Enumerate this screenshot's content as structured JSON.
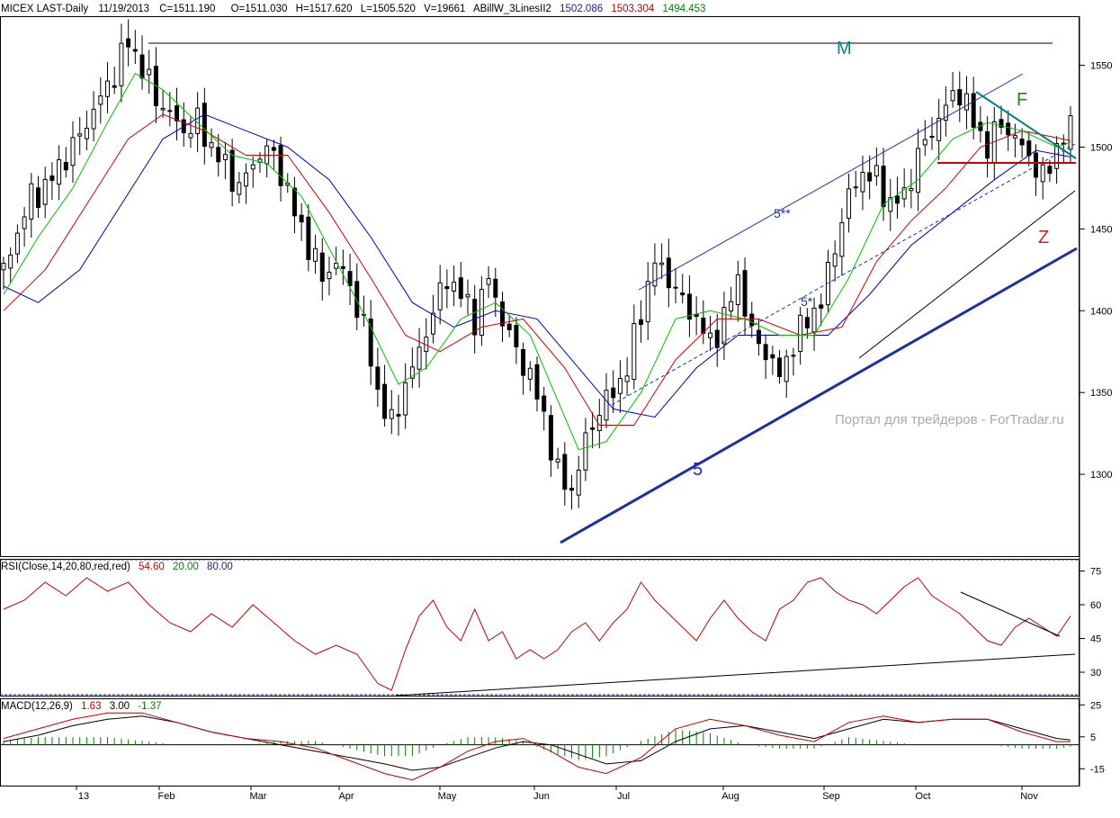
{
  "header": {
    "symbol": "MICEX LAST-Daily",
    "date": "11/19/2013",
    "close": "C=1511.190",
    "open": "O=1511.030",
    "high": "H=1517.620",
    "low": "L=1505.520",
    "volume": "V=19661",
    "indicator": "ABillW_3LinesII2",
    "ma1": "1502.086",
    "ma2": "1503.304",
    "ma3": "1494.453"
  },
  "annotations": {
    "m": "M",
    "f": "F",
    "z": "Z",
    "wave5": "5",
    "wave5star": "5*",
    "wave5starstar": "5**",
    "watermark": "Портал для трейдеров - ForTradar.ru"
  },
  "rsi_header": {
    "label": "RSI(Close,14,20,80,red,red)",
    "value": "54.60",
    "lower": "20.00",
    "upper": "80.00"
  },
  "macd_header": {
    "label": "MACD(12,26,9)",
    "macd": "1.63",
    "signal": "3.00",
    "hist": "-1.37"
  },
  "colors": {
    "header_blue": "#1a1a8c",
    "header_red": "#c00000",
    "header_green": "#008000",
    "candle": "#000000",
    "ma_fast": "#00c000",
    "ma_mid": "#d00000",
    "ma_slow": "#0000c0",
    "trend_blue": "#1c2fa8",
    "annot_teal": "#008080",
    "annot_green": "#208020",
    "annot_red": "#d02020",
    "level_red": "#cc0000",
    "watermark": "#a9a9a9"
  },
  "chart_data": [
    {
      "type": "candlestick",
      "title": "MICEX LAST-Daily",
      "ylim": [
        1250,
        1580
      ],
      "yticks": [
        1300,
        1350,
        1400,
        1450,
        1500,
        1550
      ],
      "months": [
        "13",
        "Feb",
        "Mar",
        "Apr",
        "May",
        "Jun",
        "Jul",
        "Aug",
        "Sep",
        "Oct",
        "Nov"
      ],
      "close_path": [
        [
          0,
          1425
        ],
        [
          4,
          1448
        ],
        [
          8,
          1470
        ],
        [
          12,
          1475
        ],
        [
          16,
          1488
        ],
        [
          20,
          1500
        ],
        [
          24,
          1515
        ],
        [
          28,
          1530
        ],
        [
          32,
          1545
        ],
        [
          36,
          1565
        ],
        [
          40,
          1548
        ],
        [
          44,
          1530
        ],
        [
          48,
          1520
        ],
        [
          52,
          1510
        ],
        [
          56,
          1515
        ],
        [
          60,
          1500
        ],
        [
          64,
          1488
        ],
        [
          68,
          1475
        ],
        [
          72,
          1490
        ],
        [
          76,
          1500
        ],
        [
          80,
          1485
        ],
        [
          84,
          1460
        ],
        [
          88,
          1440
        ],
        [
          92,
          1420
        ],
        [
          96,
          1430
        ],
        [
          100,
          1415
        ],
        [
          104,
          1390
        ],
        [
          108,
          1350
        ],
        [
          112,
          1330
        ],
        [
          116,
          1355
        ],
        [
          120,
          1375
        ],
        [
          124,
          1400
        ],
        [
          128,
          1420
        ],
        [
          132,
          1410
        ],
        [
          136,
          1395
        ],
        [
          140,
          1420
        ],
        [
          144,
          1395
        ],
        [
          148,
          1375
        ],
        [
          152,
          1360
        ],
        [
          156,
          1335
        ],
        [
          160,
          1300
        ],
        [
          164,
          1290
        ],
        [
          168,
          1320
        ],
        [
          172,
          1340
        ],
        [
          176,
          1350
        ],
        [
          180,
          1365
        ],
        [
          184,
          1400
        ],
        [
          188,
          1430
        ],
        [
          192,
          1420
        ],
        [
          196,
          1405
        ],
        [
          200,
          1395
        ],
        [
          204,
          1380
        ],
        [
          208,
          1395
        ],
        [
          212,
          1420
        ],
        [
          216,
          1385
        ],
        [
          220,
          1375
        ],
        [
          224,
          1360
        ],
        [
          228,
          1380
        ],
        [
          232,
          1395
        ],
        [
          236,
          1405
        ],
        [
          240,
          1440
        ],
        [
          244,
          1470
        ],
        [
          248,
          1485
        ],
        [
          252,
          1480
        ],
        [
          256,
          1465
        ],
        [
          260,
          1470
        ],
        [
          264,
          1495
        ],
        [
          268,
          1510
        ],
        [
          272,
          1525
        ],
        [
          276,
          1535
        ],
        [
          280,
          1515
        ],
        [
          284,
          1500
        ],
        [
          288,
          1515
        ],
        [
          292,
          1505
        ],
        [
          296,
          1495
        ],
        [
          300,
          1480
        ],
        [
          304,
          1500
        ],
        [
          308,
          1511
        ]
      ],
      "ma_fast_path": [
        [
          0,
          1410
        ],
        [
          10,
          1445
        ],
        [
          20,
          1475
        ],
        [
          30,
          1515
        ],
        [
          38,
          1545
        ],
        [
          46,
          1535
        ],
        [
          56,
          1515
        ],
        [
          66,
          1495
        ],
        [
          76,
          1490
        ],
        [
          86,
          1470
        ],
        [
          96,
          1430
        ],
        [
          106,
          1390
        ],
        [
          114,
          1355
        ],
        [
          122,
          1365
        ],
        [
          132,
          1395
        ],
        [
          142,
          1405
        ],
        [
          152,
          1385
        ],
        [
          160,
          1345
        ],
        [
          166,
          1315
        ],
        [
          174,
          1320
        ],
        [
          184,
          1350
        ],
        [
          194,
          1395
        ],
        [
          204,
          1400
        ],
        [
          214,
          1395
        ],
        [
          224,
          1385
        ],
        [
          234,
          1385
        ],
        [
          244,
          1420
        ],
        [
          254,
          1465
        ],
        [
          264,
          1480
        ],
        [
          274,
          1505
        ],
        [
          284,
          1515
        ],
        [
          294,
          1510
        ],
        [
          304,
          1500
        ],
        [
          308,
          1503
        ]
      ],
      "ma_mid_path": [
        [
          0,
          1400
        ],
        [
          12,
          1425
        ],
        [
          24,
          1465
        ],
        [
          36,
          1505
        ],
        [
          46,
          1520
        ],
        [
          58,
          1510
        ],
        [
          70,
          1495
        ],
        [
          82,
          1495
        ],
        [
          94,
          1460
        ],
        [
          106,
          1420
        ],
        [
          116,
          1385
        ],
        [
          126,
          1375
        ],
        [
          138,
          1390
        ],
        [
          150,
          1395
        ],
        [
          162,
          1365
        ],
        [
          172,
          1330
        ],
        [
          182,
          1330
        ],
        [
          194,
          1370
        ],
        [
          206,
          1395
        ],
        [
          218,
          1395
        ],
        [
          230,
          1385
        ],
        [
          242,
          1390
        ],
        [
          252,
          1430
        ],
        [
          262,
          1455
        ],
        [
          272,
          1475
        ],
        [
          282,
          1500
        ],
        [
          294,
          1510
        ],
        [
          308,
          1504
        ]
      ],
      "ma_slow_path": [
        [
          0,
          1415
        ],
        [
          10,
          1405
        ],
        [
          22,
          1425
        ],
        [
          34,
          1465
        ],
        [
          46,
          1505
        ],
        [
          58,
          1520
        ],
        [
          70,
          1510
        ],
        [
          82,
          1500
        ],
        [
          94,
          1480
        ],
        [
          106,
          1445
        ],
        [
          118,
          1405
        ],
        [
          130,
          1390
        ],
        [
          142,
          1400
        ],
        [
          154,
          1395
        ],
        [
          166,
          1365
        ],
        [
          176,
          1340
        ],
        [
          188,
          1335
        ],
        [
          200,
          1365
        ],
        [
          212,
          1385
        ],
        [
          226,
          1385
        ],
        [
          238,
          1385
        ],
        [
          250,
          1410
        ],
        [
          262,
          1440
        ],
        [
          274,
          1460
        ],
        [
          286,
          1480
        ],
        [
          298,
          1498
        ],
        [
          308,
          1494
        ]
      ]
    },
    {
      "type": "line",
      "title": "RSI(Close,14,20,80,red,red)",
      "ylim": [
        20,
        80
      ],
      "yticks": [
        30,
        45,
        60,
        75
      ],
      "values_path": [
        [
          0,
          58
        ],
        [
          6,
          62
        ],
        [
          12,
          70
        ],
        [
          18,
          64
        ],
        [
          24,
          72
        ],
        [
          30,
          66
        ],
        [
          36,
          70
        ],
        [
          42,
          60
        ],
        [
          48,
          52
        ],
        [
          54,
          48
        ],
        [
          60,
          56
        ],
        [
          66,
          50
        ],
        [
          72,
          60
        ],
        [
          78,
          52
        ],
        [
          84,
          44
        ],
        [
          90,
          38
        ],
        [
          96,
          42
        ],
        [
          102,
          38
        ],
        [
          108,
          25
        ],
        [
          112,
          22
        ],
        [
          116,
          40
        ],
        [
          120,
          55
        ],
        [
          124,
          62
        ],
        [
          128,
          50
        ],
        [
          132,
          44
        ],
        [
          136,
          58
        ],
        [
          140,
          44
        ],
        [
          144,
          48
        ],
        [
          148,
          36
        ],
        [
          152,
          40
        ],
        [
          156,
          36
        ],
        [
          160,
          40
        ],
        [
          164,
          48
        ],
        [
          168,
          52
        ],
        [
          172,
          44
        ],
        [
          176,
          52
        ],
        [
          180,
          58
        ],
        [
          184,
          70
        ],
        [
          188,
          62
        ],
        [
          192,
          56
        ],
        [
          196,
          50
        ],
        [
          200,
          44
        ],
        [
          204,
          54
        ],
        [
          208,
          62
        ],
        [
          212,
          54
        ],
        [
          216,
          48
        ],
        [
          220,
          44
        ],
        [
          224,
          58
        ],
        [
          228,
          62
        ],
        [
          232,
          70
        ],
        [
          236,
          72
        ],
        [
          240,
          66
        ],
        [
          244,
          62
        ],
        [
          248,
          60
        ],
        [
          252,
          56
        ],
        [
          256,
          62
        ],
        [
          260,
          68
        ],
        [
          264,
          72
        ],
        [
          268,
          64
        ],
        [
          272,
          60
        ],
        [
          276,
          56
        ],
        [
          280,
          50
        ],
        [
          284,
          44
        ],
        [
          288,
          42
        ],
        [
          292,
          50
        ],
        [
          296,
          54
        ],
        [
          300,
          50
        ],
        [
          304,
          46
        ],
        [
          308,
          55
        ]
      ]
    },
    {
      "type": "line",
      "title": "MACD(12,26,9)",
      "ylim": [
        -25,
        28
      ],
      "yticks": [
        -15,
        5,
        25
      ],
      "macd_path": [
        [
          0,
          4
        ],
        [
          10,
          10
        ],
        [
          20,
          16
        ],
        [
          30,
          20
        ],
        [
          40,
          20
        ],
        [
          50,
          14
        ],
        [
          60,
          8
        ],
        [
          70,
          4
        ],
        [
          80,
          2
        ],
        [
          90,
          -2
        ],
        [
          100,
          -10
        ],
        [
          110,
          -18
        ],
        [
          118,
          -22
        ],
        [
          126,
          -14
        ],
        [
          134,
          -4
        ],
        [
          142,
          2
        ],
        [
          150,
          4
        ],
        [
          158,
          -4
        ],
        [
          166,
          -14
        ],
        [
          174,
          -18
        ],
        [
          184,
          -8
        ],
        [
          194,
          10
        ],
        [
          204,
          16
        ],
        [
          214,
          12
        ],
        [
          224,
          6
        ],
        [
          234,
          2
        ],
        [
          244,
          14
        ],
        [
          254,
          18
        ],
        [
          264,
          14
        ],
        [
          274,
          16
        ],
        [
          284,
          16
        ],
        [
          294,
          8
        ],
        [
          304,
          2
        ],
        [
          308,
          2
        ]
      ],
      "signal_path": [
        [
          0,
          2
        ],
        [
          10,
          6
        ],
        [
          20,
          12
        ],
        [
          30,
          16
        ],
        [
          40,
          18
        ],
        [
          50,
          14
        ],
        [
          60,
          8
        ],
        [
          70,
          4
        ],
        [
          80,
          0
        ],
        [
          90,
          -4
        ],
        [
          100,
          -8
        ],
        [
          110,
          -12
        ],
        [
          118,
          -16
        ],
        [
          126,
          -14
        ],
        [
          134,
          -8
        ],
        [
          142,
          -2
        ],
        [
          150,
          2
        ],
        [
          158,
          0
        ],
        [
          166,
          -6
        ],
        [
          174,
          -12
        ],
        [
          184,
          -10
        ],
        [
          194,
          2
        ],
        [
          204,
          10
        ],
        [
          214,
          12
        ],
        [
          224,
          8
        ],
        [
          234,
          4
        ],
        [
          244,
          10
        ],
        [
          254,
          16
        ],
        [
          264,
          14
        ],
        [
          274,
          16
        ],
        [
          284,
          16
        ],
        [
          294,
          10
        ],
        [
          304,
          4
        ],
        [
          308,
          3
        ]
      ]
    }
  ]
}
